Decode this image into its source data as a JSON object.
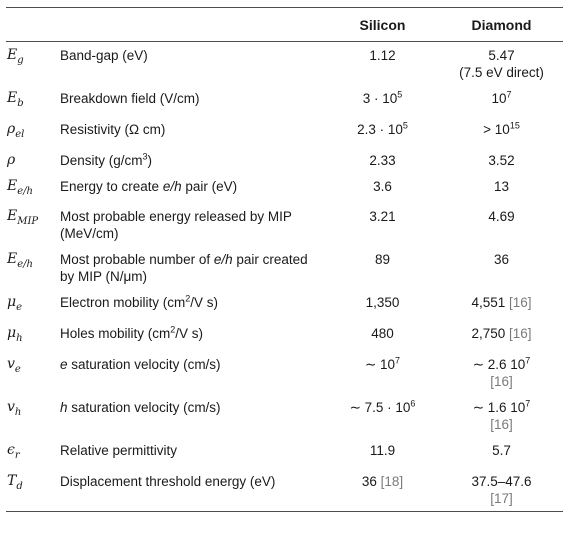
{
  "header": {
    "col_silicon": "Silicon",
    "col_diamond": "Diamond"
  },
  "rows": [
    {
      "sym_base": "E",
      "sym_sub": "g",
      "desc": "Band-gap (eV)",
      "si": "1.12",
      "di": "5.47",
      "di_extra": "(7.5 eV direct)"
    },
    {
      "sym_base": "E",
      "sym_sub": "b",
      "desc": "Breakdown field (V/cm)",
      "si_base": "3 · 10",
      "si_sup": "5",
      "di_base": "10",
      "di_sup": "7"
    },
    {
      "sym_base": "ρ",
      "sym_sub": "el",
      "desc": "Resistivity (Ω cm)",
      "si_base": "2.3 · 10",
      "si_sup": "5",
      "di_base": "> 10",
      "di_sup": "15"
    },
    {
      "sym_base": "ρ",
      "sym_sub": "",
      "desc_base": "Density (g/cm",
      "desc_sup": "3",
      "desc_tail": ")",
      "si": "2.33",
      "di": "3.52"
    },
    {
      "sym_base": "E",
      "sym_sub": "e/h",
      "desc_pre": "Energy to create ",
      "desc_em": "e/h",
      "desc_post": " pair (eV)",
      "si": "3.6",
      "di": "13"
    },
    {
      "sym_base": "E",
      "sym_sub": "MIP",
      "desc": "Most probable energy released by MIP (MeV/cm)",
      "si": "3.21",
      "di": "4.69"
    },
    {
      "sym_base": "E",
      "sym_sub": "e/h",
      "desc_pre": "Most probable number of ",
      "desc_em": "e/h",
      "desc_post": " pair created by MIP (N/μm)",
      "si": "89",
      "di": "36"
    },
    {
      "sym_base": "μ",
      "sym_sub": "e",
      "desc_base": "Electron mobility (cm",
      "desc_sup": "2",
      "desc_tail": "/V s)",
      "si": "1,350",
      "di": "4,551",
      "di_ref": "[16]"
    },
    {
      "sym_base": "μ",
      "sym_sub": "h",
      "desc_base": "Holes mobility (cm",
      "desc_sup": "2",
      "desc_tail": "/V s)",
      "si": "480",
      "di": "2,750",
      "di_ref": "[16]"
    },
    {
      "sym_base": "v",
      "sym_sub": "e",
      "desc_em": "e",
      "desc_post": " saturation velocity (cm/s)",
      "si_base": "∼ 10",
      "si_sup": "7",
      "di_base": "∼ 2.6 10",
      "di_sup": "7",
      "di_ref": "[16]"
    },
    {
      "sym_base": "v",
      "sym_sub": "h",
      "desc_em": "h",
      "desc_post": " saturation velocity (cm/s)",
      "si_base": "∼ 7.5 · 10",
      "si_sup": "6",
      "di_base": "∼ 1.6 10",
      "di_sup": "7",
      "di_ref": "[16]"
    },
    {
      "sym_base": "ϵ",
      "sym_sub": "r",
      "desc": "Relative permittivity",
      "si": "11.9",
      "di": "5.7"
    },
    {
      "sym_base": "T",
      "sym_sub": "d",
      "desc": "Displacement threshold energy (eV)",
      "si": "36",
      "si_ref": "[18]",
      "di": "37.5–47.6",
      "di_ref": "[17]"
    }
  ]
}
